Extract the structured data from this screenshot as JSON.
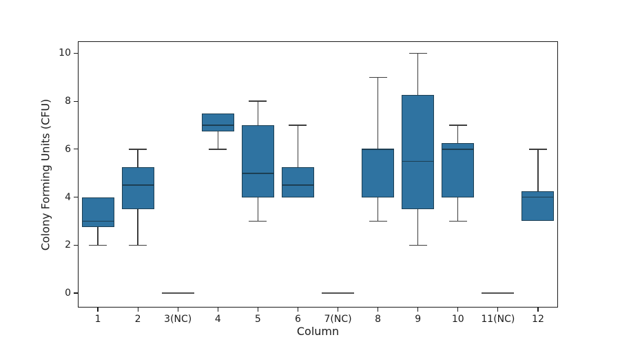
{
  "chart_data": {
    "type": "boxplot",
    "title": "",
    "xlabel": "Column",
    "ylabel": "Colony Forming Units (CFU)",
    "categories": [
      "1",
      "2",
      "3(NC)",
      "4",
      "5",
      "6",
      "7(NC)",
      "8",
      "9",
      "10",
      "11(NC)",
      "12"
    ],
    "yticks": [
      0,
      2,
      4,
      6,
      8,
      10
    ],
    "ylim": [
      -0.6,
      10.5
    ],
    "grid": false,
    "legend": "none",
    "boxes": [
      {
        "label": "1",
        "whislo": 2.0,
        "q1": 2.75,
        "med": 3.0,
        "q3": 4.0,
        "whishi": 4.0
      },
      {
        "label": "2",
        "whislo": 2.0,
        "q1": 3.5,
        "med": 4.5,
        "q3": 5.25,
        "whishi": 6.0
      },
      {
        "label": "3(NC)",
        "whislo": 0,
        "q1": 0,
        "med": 0,
        "q3": 0,
        "whishi": 0
      },
      {
        "label": "4",
        "whislo": 6.0,
        "q1": 6.75,
        "med": 7.0,
        "q3": 7.5,
        "whishi": 7.5
      },
      {
        "label": "5",
        "whislo": 3.0,
        "q1": 4.0,
        "med": 5.0,
        "q3": 7.0,
        "whishi": 8.0
      },
      {
        "label": "6",
        "whislo": 4.0,
        "q1": 4.0,
        "med": 4.5,
        "q3": 5.25,
        "whishi": 7.0
      },
      {
        "label": "7(NC)",
        "whislo": 0,
        "q1": 0,
        "med": 0,
        "q3": 0,
        "whishi": 0
      },
      {
        "label": "8",
        "whislo": 3.0,
        "q1": 4.0,
        "med": 6.0,
        "q3": 6.0,
        "whishi": 9.0
      },
      {
        "label": "9",
        "whislo": 2.0,
        "q1": 3.5,
        "med": 5.5,
        "q3": 8.25,
        "whishi": 10.0
      },
      {
        "label": "10",
        "whislo": 3.0,
        "q1": 4.0,
        "med": 6.0,
        "q3": 6.25,
        "whishi": 7.0
      },
      {
        "label": "11(NC)",
        "whislo": 0,
        "q1": 0,
        "med": 0,
        "q3": 0,
        "whishi": 0
      },
      {
        "label": "12",
        "whislo": 3.0,
        "q1": 3.0,
        "med": 4.0,
        "q3": 4.25,
        "whishi": 6.0
      }
    ],
    "colors": {
      "box_fill": "#2f73a1",
      "box_edge": "#1c3e52",
      "whisker": "#3c3c3c",
      "nc_line": "#4f4f4f",
      "axis": "#1a1a1a"
    }
  }
}
